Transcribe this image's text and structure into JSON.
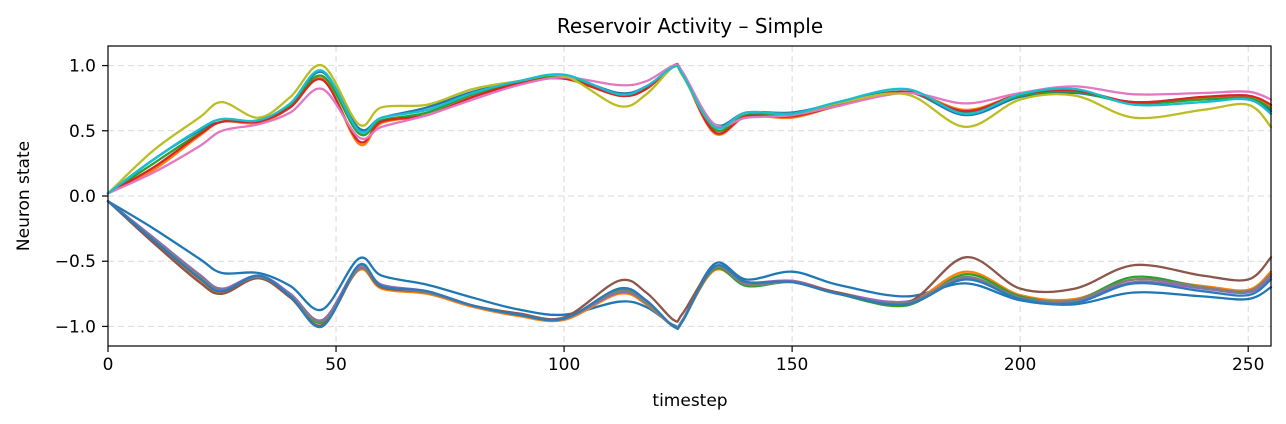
{
  "chart_data": {
    "type": "line",
    "title": "Reservoir Activity – Simple",
    "xlabel": "timestep",
    "ylabel": "Neuron state",
    "xlim": [
      0,
      255
    ],
    "ylim": [
      -1.15,
      1.15
    ],
    "xticks": [
      0,
      50,
      100,
      150,
      200,
      250
    ],
    "yticks": [
      1.0,
      0.5,
      0.0,
      -0.5,
      -1.0
    ],
    "xtick_labels": [
      "0",
      "50",
      "100",
      "150",
      "200",
      "250"
    ],
    "ytick_labels": [
      "1.0",
      "0.5",
      "0.0",
      "−0.5",
      "−1.0"
    ],
    "grid": true,
    "legend": "none",
    "x": [
      0,
      10,
      20,
      25,
      33,
      40,
      47,
      55,
      60,
      70,
      80,
      90,
      100,
      112,
      118,
      124,
      126,
      133,
      140,
      150,
      160,
      175,
      188,
      200,
      212,
      225,
      240,
      250,
      255
    ],
    "series": [
      {
        "color": "#1f77b4",
        "values": [
          0.02,
          0.28,
          0.5,
          0.57,
          0.58,
          0.7,
          0.95,
          0.52,
          0.6,
          0.68,
          0.8,
          0.88,
          0.92,
          0.79,
          0.84,
          0.99,
          0.93,
          0.55,
          0.64,
          0.64,
          0.71,
          0.8,
          0.62,
          0.76,
          0.79,
          0.72,
          0.74,
          0.74,
          0.65
        ]
      },
      {
        "color": "#ff7f0e",
        "values": [
          0.02,
          0.2,
          0.46,
          0.57,
          0.56,
          0.68,
          0.9,
          0.4,
          0.56,
          0.62,
          0.76,
          0.86,
          0.9,
          0.77,
          0.82,
          1.0,
          0.94,
          0.48,
          0.61,
          0.6,
          0.69,
          0.8,
          0.66,
          0.78,
          0.81,
          0.71,
          0.75,
          0.76,
          0.69
        ]
      },
      {
        "color": "#2ca02c",
        "values": [
          0.02,
          0.25,
          0.48,
          0.57,
          0.58,
          0.69,
          0.92,
          0.48,
          0.58,
          0.64,
          0.78,
          0.87,
          0.91,
          0.78,
          0.83,
          0.99,
          0.93,
          0.51,
          0.62,
          0.62,
          0.7,
          0.8,
          0.64,
          0.77,
          0.8,
          0.71,
          0.74,
          0.75,
          0.67
        ]
      },
      {
        "color": "#d62728",
        "values": [
          0.02,
          0.22,
          0.47,
          0.57,
          0.57,
          0.68,
          0.89,
          0.42,
          0.57,
          0.62,
          0.76,
          0.86,
          0.9,
          0.77,
          0.82,
          1.0,
          0.94,
          0.49,
          0.61,
          0.61,
          0.69,
          0.8,
          0.65,
          0.78,
          0.81,
          0.72,
          0.76,
          0.77,
          0.7
        ]
      },
      {
        "color": "#e377c2",
        "values": [
          0.02,
          0.18,
          0.38,
          0.5,
          0.55,
          0.64,
          0.82,
          0.45,
          0.53,
          0.62,
          0.74,
          0.85,
          0.91,
          0.85,
          0.88,
          1.0,
          0.95,
          0.55,
          0.6,
          0.62,
          0.69,
          0.79,
          0.71,
          0.79,
          0.84,
          0.78,
          0.79,
          0.8,
          0.74
        ]
      },
      {
        "color": "#bcbd22",
        "values": [
          0.02,
          0.35,
          0.6,
          0.72,
          0.6,
          0.76,
          1.0,
          0.55,
          0.68,
          0.7,
          0.82,
          0.88,
          0.92,
          0.69,
          0.78,
          0.99,
          0.92,
          0.53,
          0.64,
          0.63,
          0.71,
          0.78,
          0.53,
          0.74,
          0.77,
          0.6,
          0.66,
          0.7,
          0.53
        ]
      },
      {
        "color": "#17becf",
        "values": [
          0.02,
          0.28,
          0.51,
          0.59,
          0.58,
          0.71,
          0.96,
          0.5,
          0.6,
          0.66,
          0.79,
          0.88,
          0.93,
          0.78,
          0.84,
          0.99,
          0.93,
          0.53,
          0.64,
          0.63,
          0.72,
          0.82,
          0.63,
          0.78,
          0.82,
          0.7,
          0.72,
          0.74,
          0.63
        ]
      },
      {
        "color": "#1f77b4",
        "values": [
          -0.04,
          -0.25,
          -0.48,
          -0.59,
          -0.59,
          -0.69,
          -0.87,
          -0.48,
          -0.61,
          -0.68,
          -0.78,
          -0.87,
          -0.91,
          -0.81,
          -0.85,
          -0.99,
          -0.95,
          -0.52,
          -0.64,
          -0.58,
          -0.68,
          -0.77,
          -0.67,
          -0.8,
          -0.83,
          -0.74,
          -0.77,
          -0.79,
          -0.7
        ]
      },
      {
        "color": "#ff7f0e",
        "values": [
          -0.04,
          -0.35,
          -0.65,
          -0.74,
          -0.62,
          -0.77,
          -0.96,
          -0.57,
          -0.71,
          -0.75,
          -0.85,
          -0.92,
          -0.95,
          -0.75,
          -0.83,
          -1.0,
          -0.95,
          -0.57,
          -0.68,
          -0.65,
          -0.74,
          -0.82,
          -0.58,
          -0.76,
          -0.79,
          -0.64,
          -0.69,
          -0.72,
          -0.58
        ]
      },
      {
        "color": "#2ca02c",
        "values": [
          -0.04,
          -0.33,
          -0.62,
          -0.72,
          -0.62,
          -0.76,
          -0.97,
          -0.56,
          -0.7,
          -0.74,
          -0.84,
          -0.91,
          -0.94,
          -0.72,
          -0.82,
          -1.0,
          -0.95,
          -0.56,
          -0.69,
          -0.66,
          -0.75,
          -0.84,
          -0.6,
          -0.77,
          -0.8,
          -0.62,
          -0.7,
          -0.73,
          -0.6
        ]
      },
      {
        "color": "#9467bd",
        "values": [
          -0.04,
          -0.32,
          -0.6,
          -0.71,
          -0.61,
          -0.75,
          -0.95,
          -0.54,
          -0.68,
          -0.73,
          -0.84,
          -0.91,
          -0.94,
          -0.74,
          -0.82,
          -1.0,
          -0.95,
          -0.55,
          -0.66,
          -0.65,
          -0.74,
          -0.81,
          -0.63,
          -0.78,
          -0.81,
          -0.66,
          -0.71,
          -0.74,
          -0.62
        ]
      },
      {
        "color": "#8c564b",
        "values": [
          -0.04,
          -0.36,
          -0.66,
          -0.75,
          -0.63,
          -0.78,
          -0.99,
          -0.56,
          -0.7,
          -0.74,
          -0.84,
          -0.9,
          -0.93,
          -0.65,
          -0.74,
          -0.95,
          -0.9,
          -0.55,
          -0.66,
          -0.66,
          -0.74,
          -0.82,
          -0.47,
          -0.71,
          -0.71,
          -0.53,
          -0.61,
          -0.64,
          -0.47
        ]
      },
      {
        "color": "#7f7f7f",
        "values": [
          -0.04,
          -0.33,
          -0.61,
          -0.72,
          -0.62,
          -0.76,
          -0.96,
          -0.56,
          -0.69,
          -0.74,
          -0.84,
          -0.91,
          -0.94,
          -0.73,
          -0.82,
          -1.0,
          -0.95,
          -0.55,
          -0.68,
          -0.66,
          -0.75,
          -0.82,
          -0.62,
          -0.78,
          -0.8,
          -0.64,
          -0.7,
          -0.73,
          -0.6
        ]
      },
      {
        "color": "#2b7bba",
        "values": [
          -0.04,
          -0.34,
          -0.63,
          -0.73,
          -0.61,
          -0.77,
          -1.0,
          -0.53,
          -0.69,
          -0.73,
          -0.84,
          -0.91,
          -0.94,
          -0.71,
          -0.8,
          -1.0,
          -0.96,
          -0.54,
          -0.66,
          -0.66,
          -0.75,
          -0.83,
          -0.64,
          -0.79,
          -0.82,
          -0.67,
          -0.73,
          -0.76,
          -0.64
        ]
      }
    ]
  }
}
